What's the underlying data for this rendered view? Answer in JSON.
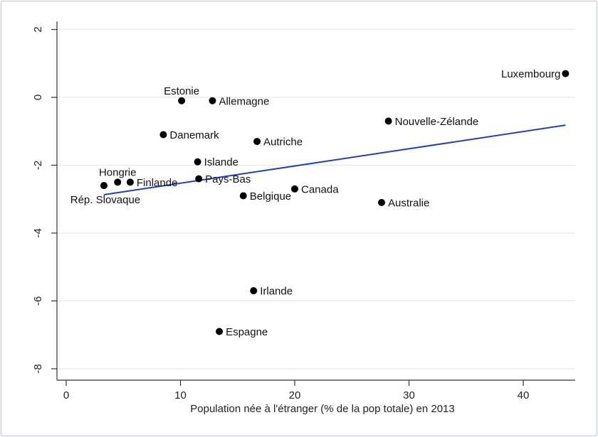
{
  "chart_data": {
    "type": "scatter",
    "title": "",
    "xlabel": "Population née à l'étranger (% de la pop totale) en 2013",
    "ylabel": "",
    "xlim": [
      0,
      44
    ],
    "ylim": [
      -8,
      2
    ],
    "xticks": [
      0,
      10,
      20,
      30,
      40
    ],
    "yticks": [
      -8,
      -6,
      -4,
      -2,
      0,
      2
    ],
    "grid": true,
    "points": [
      {
        "label": "Luxembourg",
        "x": 43.7,
        "y": 0.7,
        "label_pos": "left"
      },
      {
        "label": "Estonie",
        "x": 10.1,
        "y": -0.1,
        "label_pos": "above"
      },
      {
        "label": "Allemagne",
        "x": 12.8,
        "y": -0.1,
        "label_pos": "right"
      },
      {
        "label": "Nouvelle-Zélande",
        "x": 28.2,
        "y": -0.7,
        "label_pos": "right"
      },
      {
        "label": "Danemark",
        "x": 8.5,
        "y": -1.1,
        "label_pos": "right"
      },
      {
        "label": "Autriche",
        "x": 16.7,
        "y": -1.3,
        "label_pos": "right"
      },
      {
        "label": "Islande",
        "x": 11.5,
        "y": -1.9,
        "label_pos": "right"
      },
      {
        "label": "Pays-Bas",
        "x": 11.6,
        "y": -2.4,
        "label_pos": "right"
      },
      {
        "label": "Hongrie",
        "x": 4.5,
        "y": -2.5,
        "label_pos": "above"
      },
      {
        "label": "Finlande",
        "x": 5.6,
        "y": -2.5,
        "label_pos": "right"
      },
      {
        "label": "Rép. Slovaque",
        "x": 3.3,
        "y": -2.6,
        "label_pos": "below"
      },
      {
        "label": "Canada",
        "x": 20.0,
        "y": -2.7,
        "label_pos": "right"
      },
      {
        "label": "Belgique",
        "x": 15.5,
        "y": -2.9,
        "label_pos": "right"
      },
      {
        "label": "Australie",
        "x": 27.6,
        "y": -3.1,
        "label_pos": "right"
      },
      {
        "label": "Irlande",
        "x": 16.4,
        "y": -5.7,
        "label_pos": "right"
      },
      {
        "label": "Espagne",
        "x": 13.4,
        "y": -6.9,
        "label_pos": "right"
      }
    ],
    "fit_line": {
      "x": [
        3.3,
        43.7
      ],
      "y": [
        -2.87,
        -0.82
      ],
      "color": "#1f3fcf"
    },
    "colors": {
      "point": "#000000",
      "grid": "#e6e8ea",
      "axis": "#333333",
      "frame": "#d8dde3"
    }
  }
}
